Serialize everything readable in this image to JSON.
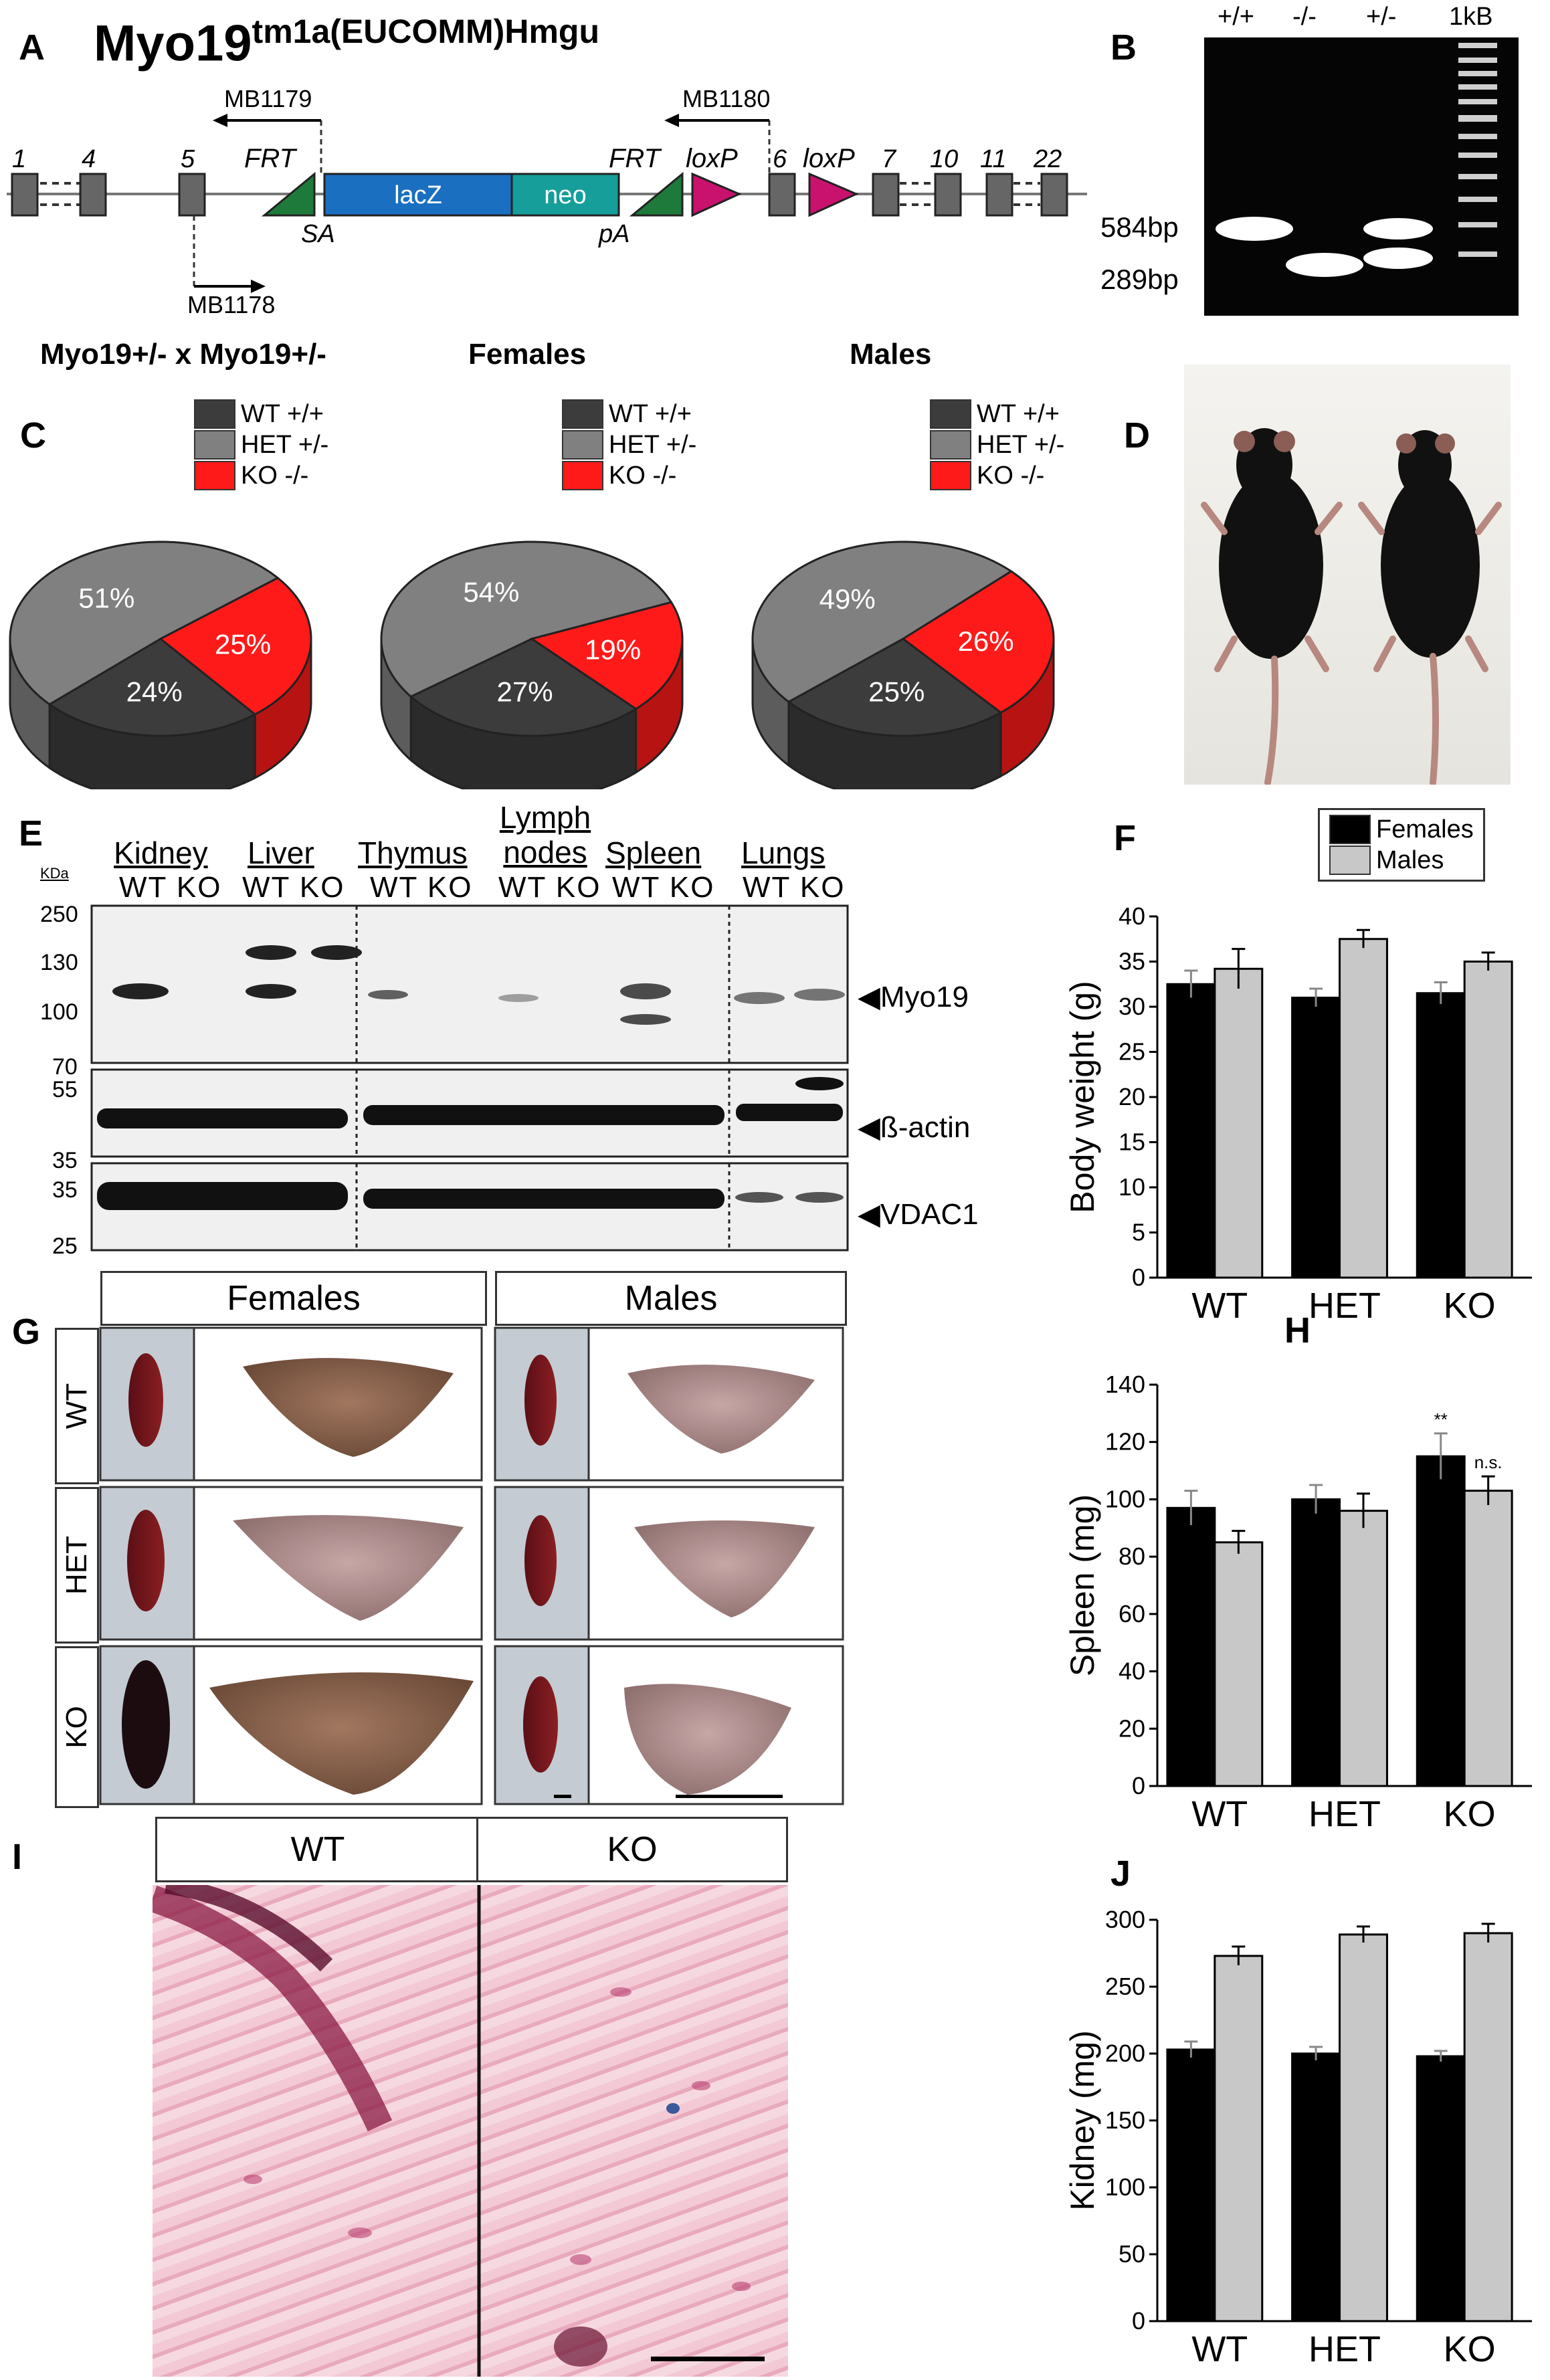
{
  "panel_labels": {
    "A": "A",
    "B": "B",
    "C": "C",
    "D": "D",
    "E": "E",
    "F": "F",
    "G": "G",
    "H": "H",
    "I": "I",
    "J": "J"
  },
  "panelA": {
    "allele_name": "Myo19",
    "allele_sup": "tm1a(EUCOMM)Hmgu",
    "exons": [
      "1",
      "4",
      "5",
      "6",
      "7",
      "10",
      "11",
      "22"
    ],
    "elements": {
      "frt": "FRT",
      "lacz": "lacZ",
      "neo": "neo",
      "loxp": "loxP",
      "sa": "SA",
      "pa": "pA"
    },
    "primers": [
      "MB1179",
      "MB1180",
      "MB1178"
    ]
  },
  "panelB": {
    "lanes": [
      "+/+",
      "-/-",
      "+/-",
      "1kB"
    ],
    "sizes": [
      "584bp",
      "289bp"
    ]
  },
  "panelC": {
    "headers": [
      "Myo19+/- x Myo19+/-",
      "Females",
      "Males"
    ],
    "legend": [
      "WT +/+",
      "HET +/-",
      "KO -/-"
    ],
    "colors": {
      "wt": "#3c3c3c",
      "het": "#808080",
      "ko": "#ff1a1a"
    },
    "chart_data": [
      {
        "type": "pie",
        "title": "Myo19+/- x Myo19+/-",
        "slices": [
          {
            "label": "WT +/+",
            "value": 24
          },
          {
            "label": "HET +/-",
            "value": 51
          },
          {
            "label": "KO -/-",
            "value": 25
          }
        ],
        "labels": [
          "24%",
          "51%",
          "25%"
        ]
      },
      {
        "type": "pie",
        "title": "Females",
        "slices": [
          {
            "label": "WT +/+",
            "value": 27
          },
          {
            "label": "HET +/-",
            "value": 54
          },
          {
            "label": "KO -/-",
            "value": 19
          }
        ],
        "labels": [
          "27%",
          "54%",
          "19%"
        ]
      },
      {
        "type": "pie",
        "title": "Males",
        "slices": [
          {
            "label": "WT +/+",
            "value": 25
          },
          {
            "label": "HET +/-",
            "value": 49
          },
          {
            "label": "KO -/-",
            "value": 26
          }
        ],
        "labels": [
          "25%",
          "49%",
          "26%"
        ]
      }
    ]
  },
  "panelE": {
    "kda_label": "KDa",
    "tissues": [
      "Kidney",
      "Liver",
      "Thymus",
      "Lymph nodes",
      "Spleen",
      "Lungs"
    ],
    "lane_labels": [
      "WT",
      "KO"
    ],
    "markers_top": [
      "250",
      "130",
      "100",
      "70"
    ],
    "markers_mid": [
      "55",
      "35"
    ],
    "markers_bot": [
      "35",
      "25"
    ],
    "proteins": [
      "Myo19",
      "ß-actin",
      "VDAC1"
    ]
  },
  "panelG": {
    "columns": [
      "Females",
      "Males"
    ],
    "rows": [
      "WT",
      "HET",
      "KO"
    ]
  },
  "panelI": {
    "columns": [
      "WT",
      "KO"
    ]
  },
  "bar_charts": {
    "legend": [
      "Females",
      "Males"
    ],
    "colors": {
      "females": "#000000",
      "males": "#c8c8c8"
    },
    "chart_data": [
      {
        "type": "bar",
        "id": "F",
        "categories": [
          "WT",
          "HET",
          "KO"
        ],
        "ylabel": "Body weight (g)",
        "ylim": [
          0,
          40
        ],
        "yticks": [
          0,
          5,
          10,
          15,
          20,
          25,
          30,
          35,
          40
        ],
        "series": [
          {
            "name": "Females",
            "values": [
              32.5,
              31,
              31.5
            ],
            "errors": [
              1.5,
              1,
              1.2
            ]
          },
          {
            "name": "Males",
            "values": [
              34.2,
              37.5,
              35
            ],
            "errors": [
              2.2,
              1,
              1
            ]
          }
        ]
      },
      {
        "type": "bar",
        "id": "H",
        "categories": [
          "WT",
          "HET",
          "KO"
        ],
        "ylabel": "Spleen (mg)",
        "ylim": [
          0,
          140
        ],
        "yticks": [
          0,
          20,
          40,
          60,
          80,
          100,
          120,
          140
        ],
        "series": [
          {
            "name": "Females",
            "values": [
              97,
              100,
              115
            ],
            "errors": [
              6,
              5,
              8
            ]
          },
          {
            "name": "Males",
            "values": [
              85,
              96,
              103
            ],
            "errors": [
              4,
              6,
              5
            ]
          }
        ],
        "annotations": [
          "**",
          "n.s."
        ]
      },
      {
        "type": "bar",
        "id": "J",
        "categories": [
          "WT",
          "HET",
          "KO"
        ],
        "ylabel": "Kidney (mg)",
        "ylim": [
          0,
          300
        ],
        "yticks": [
          0,
          50,
          100,
          150,
          200,
          250,
          300
        ],
        "series": [
          {
            "name": "Females",
            "values": [
              203,
              200,
              198
            ],
            "errors": [
              6,
              5,
              4
            ]
          },
          {
            "name": "Males",
            "values": [
              273,
              289,
              290
            ],
            "errors": [
              7,
              6,
              7
            ]
          }
        ]
      }
    ]
  }
}
